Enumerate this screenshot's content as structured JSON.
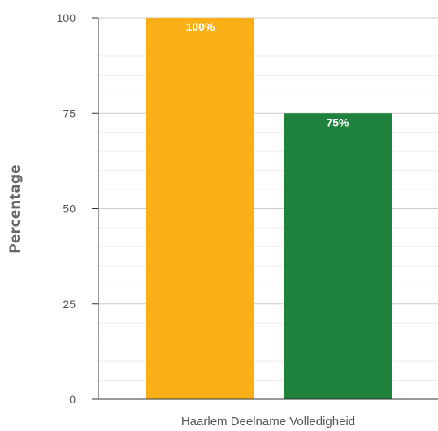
{
  "chart_data": {
    "type": "bar",
    "title": "",
    "xlabel": "Haarlem Deelname Volledigheid",
    "ylabel": "Percentage",
    "categories": [
      "",
      ""
    ],
    "values": [
      100,
      75
    ],
    "data_labels": [
      "100%",
      "75%"
    ],
    "ylim": [
      0,
      100
    ],
    "yticks": [
      0,
      25,
      50,
      75,
      100
    ],
    "ytick_labels": [
      "0",
      "25",
      "50",
      "75",
      "100"
    ],
    "minor_grid_step": 5,
    "grid": true,
    "legend": "none",
    "colors": {
      "bars": [
        "#FBAF17",
        "#1F823C"
      ],
      "grid_major": "#cccccc",
      "grid_minor": "#eeeeee",
      "axis": "#333333"
    }
  }
}
